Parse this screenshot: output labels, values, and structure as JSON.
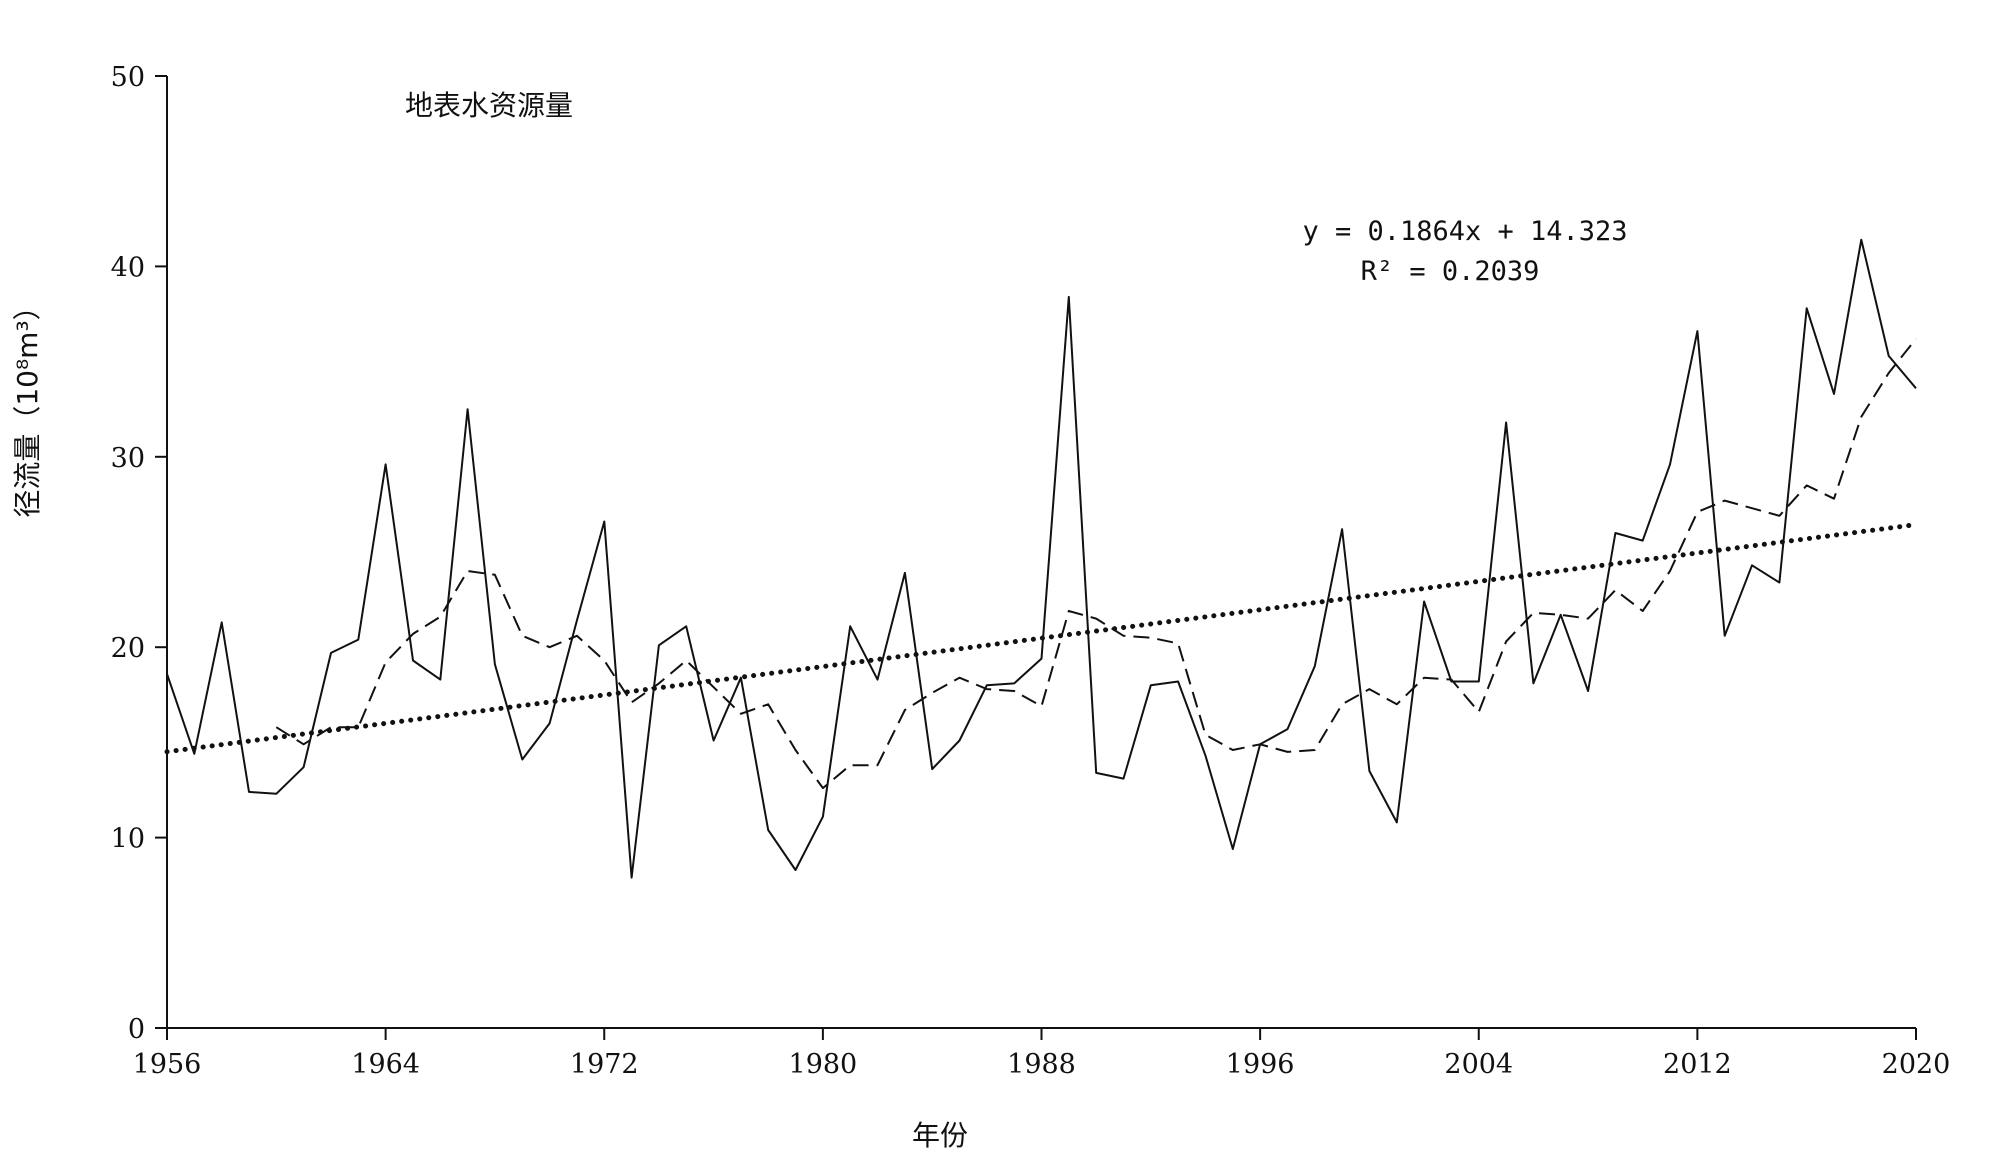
{
  "chart_data": {
    "type": "line",
    "title": "地表水资源量",
    "xlabel": "年份",
    "ylabel": "径流量（10⁸m³）",
    "xlim": [
      1956,
      2020
    ],
    "ylim": [
      0,
      50
    ],
    "x_ticks": [
      "1956",
      "1964",
      "1972",
      "1980",
      "1988",
      "1996",
      "2004",
      "2012",
      "2020"
    ],
    "y_ticks": [
      "0",
      "10",
      "20",
      "30",
      "40",
      "50"
    ],
    "grid": false,
    "legend": "none",
    "equation": "y = 0.1864x + 14.323",
    "r_squared": "R² = 0.2039",
    "trend": {
      "slope": 0.1864,
      "intercept": 14.323,
      "style": "dotted"
    },
    "x": [
      1956,
      1957,
      1958,
      1959,
      1960,
      1961,
      1962,
      1963,
      1964,
      1965,
      1966,
      1967,
      1968,
      1969,
      1970,
      1971,
      1972,
      1973,
      1974,
      1975,
      1976,
      1977,
      1978,
      1979,
      1980,
      1981,
      1982,
      1983,
      1984,
      1985,
      1986,
      1987,
      1988,
      1989,
      1990,
      1991,
      1992,
      1993,
      1994,
      1995,
      1996,
      1997,
      1998,
      1999,
      2000,
      2001,
      2002,
      2003,
      2004,
      2005,
      2006,
      2007,
      2008,
      2009,
      2010,
      2011,
      2012,
      2013,
      2014,
      2015,
      2016,
      2017,
      2018,
      2019,
      2020
    ],
    "series": [
      {
        "style": "solid",
        "values": [
          18.6,
          14.4,
          21.3,
          12.4,
          12.3,
          13.7,
          19.7,
          20.4,
          29.6,
          19.3,
          18.3,
          32.5,
          19.1,
          14.1,
          16.0,
          21.4,
          26.6,
          7.9,
          20.1,
          21.1,
          15.1,
          18.4,
          10.4,
          8.3,
          11.1,
          21.1,
          18.3,
          23.9,
          13.6,
          15.1,
          18.0,
          18.1,
          19.4,
          38.4,
          13.4,
          13.1,
          18.0,
          18.2,
          14.3,
          9.4,
          14.9,
          15.7,
          19.0,
          26.2,
          13.5,
          10.8,
          22.4,
          18.2,
          18.2,
          31.8,
          18.1,
          21.7,
          17.7,
          26.0,
          25.6,
          29.6,
          36.6,
          20.6,
          24.3,
          23.4,
          37.8,
          33.3,
          41.4,
          35.3,
          33.6
        ]
      },
      {
        "style": "dashed",
        "values": [
          null,
          null,
          null,
          null,
          15.8,
          14.9,
          15.8,
          15.8,
          19.2,
          20.7,
          21.6,
          24.0,
          23.8,
          20.6,
          20.0,
          20.6,
          19.3,
          17.1,
          18.1,
          19.3,
          17.9,
          16.5,
          17.0,
          14.6,
          12.6,
          13.8,
          13.8,
          16.7,
          17.6,
          18.4,
          17.8,
          17.7,
          16.9,
          21.9,
          21.5,
          20.6,
          20.5,
          20.2,
          15.4,
          14.6,
          14.9,
          14.5,
          14.6,
          17.0,
          17.8,
          17.0,
          18.4,
          18.3,
          16.6,
          20.3,
          21.8,
          21.7,
          21.5,
          23.0,
          21.9,
          24.0,
          27.1,
          27.7,
          27.3,
          26.9,
          28.5,
          27.8,
          32.1,
          34.4,
          36.2
        ]
      }
    ]
  }
}
